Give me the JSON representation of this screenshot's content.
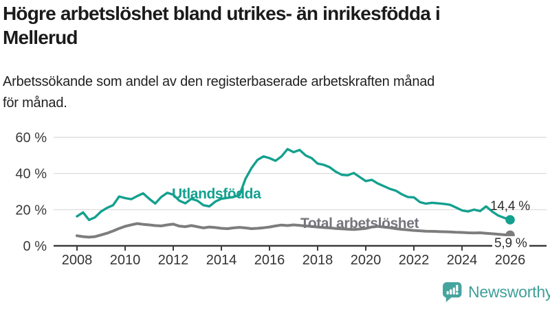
{
  "header": {
    "title_lines": [
      "Högre arbetslöshet bland utrikes- än inrikesfödda i",
      "Mellerud"
    ],
    "subtitle_lines": [
      "Arbetssökande som andel av den registerbaserade arbetskraften månad",
      "för månad."
    ]
  },
  "branding": {
    "name": "Newsworthy",
    "icon": "bar-chart-speech-bubble",
    "color": "#46a49e"
  },
  "chart_data": {
    "type": "line",
    "title": "Högre arbetslöshet bland utrikes- än inrikesfödda i Mellerud",
    "subtitle": "Arbetssökande som andel av den registerbaserade arbetskraften månad för månad.",
    "unit": "%",
    "x_axis": {
      "ticks": [
        2008,
        2010,
        2012,
        2014,
        2016,
        2018,
        2020,
        2022,
        2024,
        2026
      ],
      "range": [
        2007.0,
        2027.5
      ]
    },
    "y_axis": {
      "ticks": [
        {
          "value": 0,
          "label": "0 %"
        },
        {
          "value": 20,
          "label": "20 %"
        },
        {
          "value": 40,
          "label": "40 %"
        },
        {
          "value": 60,
          "label": "60 %"
        }
      ],
      "range": [
        0,
        62
      ]
    },
    "grid": "horizontal",
    "legend": "inline-labels",
    "x_start": 2008,
    "x_step_years": 0.25,
    "series": [
      {
        "name": "Utlandsfödda",
        "color": "#14a08f",
        "end_label": "14,4 %",
        "end_value": 14.4,
        "values": [
          16.3,
          18.5,
          14.3,
          15.8,
          19.0,
          21.0,
          22.5,
          27.3,
          26.4,
          25.8,
          27.5,
          29.0,
          26.0,
          23.4,
          27.0,
          29.3,
          28.3,
          25.0,
          23.5,
          26.0,
          25.0,
          22.5,
          21.8,
          24.5,
          26.0,
          26.5,
          27.0,
          28.0,
          37.0,
          43.0,
          47.5,
          49.5,
          48.5,
          47.0,
          49.5,
          53.5,
          51.8,
          53.0,
          50.0,
          48.5,
          45.5,
          44.8,
          43.5,
          41.0,
          39.3,
          39.0,
          40.3,
          38.0,
          35.8,
          36.5,
          34.5,
          33.0,
          31.5,
          30.5,
          28.5,
          27.0,
          26.8,
          24.2,
          23.3,
          23.8,
          23.5,
          23.2,
          22.7,
          21.2,
          19.6,
          19.0,
          20.0,
          19.2,
          21.8,
          19.0,
          16.8,
          15.5,
          14.4
        ]
      },
      {
        "name": "Total arbetslöshet",
        "color": "#7d7d7d",
        "end_label": "5,9 %",
        "end_value": 5.9,
        "values": [
          5.6,
          5.1,
          4.8,
          5.1,
          6.0,
          7.0,
          8.2,
          9.6,
          10.8,
          11.6,
          12.3,
          11.9,
          11.6,
          11.2,
          11.0,
          11.6,
          12.0,
          10.9,
          10.6,
          11.2,
          10.6,
          9.9,
          10.4,
          10.1,
          9.7,
          9.5,
          9.9,
          10.2,
          9.9,
          9.5,
          9.7,
          10.0,
          10.4,
          11.0,
          11.5,
          11.2,
          11.6,
          11.3,
          11.0,
          10.7,
          10.4,
          10.1,
          9.9,
          9.6,
          9.4,
          9.2,
          9.0,
          9.3,
          9.6,
          10.4,
          10.8,
          10.4,
          10.0,
          9.5,
          9.1,
          8.8,
          8.5,
          8.3,
          8.1,
          8.0,
          7.9,
          7.8,
          7.7,
          7.5,
          7.4,
          7.2,
          7.1,
          7.2,
          6.9,
          6.7,
          6.4,
          6.1,
          5.9
        ]
      }
    ]
  }
}
